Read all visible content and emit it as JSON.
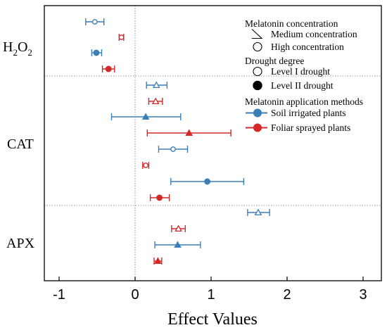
{
  "colors": {
    "blue": "#3a7fb8",
    "red": "#d62828",
    "axis": "#000000",
    "ref": "#777777"
  },
  "chart_data": {
    "type": "forest",
    "title": "",
    "xlabel": "Effect Values",
    "ylabel": "",
    "xlim": [
      -1.2,
      3.2
    ],
    "xticks": [
      -1,
      0,
      1,
      2,
      3
    ],
    "xtick_labels": [
      "-1",
      "0",
      "1",
      "2",
      "3"
    ],
    "reference_line_x": 0,
    "grid": false,
    "legend_position": "top-right",
    "groups": [
      {
        "label": "H2O2",
        "label_base": "H",
        "label_sub1": "2",
        "label_mid": "O",
        "label_sub2": "2"
      },
      {
        "label": "CAT"
      },
      {
        "label": "APX"
      }
    ],
    "points": [
      {
        "group": "H2O2",
        "method": "Soil irrigated plants",
        "concentration": "High concentration",
        "drought": "Level I drought",
        "mean": -0.53,
        "ci_low": -0.65,
        "ci_high": -0.41
      },
      {
        "group": "H2O2",
        "method": "Foliar sprayed plants",
        "concentration": "High concentration",
        "drought": "Level I drought",
        "mean": -0.18,
        "ci_low": -0.21,
        "ci_high": -0.15
      },
      {
        "group": "H2O2",
        "method": "Soil irrigated plants",
        "concentration": "High concentration",
        "drought": "Level II drought",
        "mean": -0.51,
        "ci_low": -0.57,
        "ci_high": -0.44
      },
      {
        "group": "H2O2",
        "method": "Foliar sprayed plants",
        "concentration": "High concentration",
        "drought": "Level II drought",
        "mean": -0.35,
        "ci_low": -0.43,
        "ci_high": -0.27
      },
      {
        "group": "CAT",
        "method": "Soil irrigated plants",
        "concentration": "Medium concentration",
        "drought": "Level I drought",
        "mean": 0.28,
        "ci_low": 0.15,
        "ci_high": 0.42
      },
      {
        "group": "CAT",
        "method": "Foliar sprayed plants",
        "concentration": "Medium concentration",
        "drought": "Level I drought",
        "mean": 0.27,
        "ci_low": 0.18,
        "ci_high": 0.36
      },
      {
        "group": "CAT",
        "method": "Soil irrigated plants",
        "concentration": "Medium concentration",
        "drought": "Level II drought",
        "mean": 0.14,
        "ci_low": -0.31,
        "ci_high": 0.6
      },
      {
        "group": "CAT",
        "method": "Foliar sprayed plants",
        "concentration": "Medium concentration",
        "drought": "Level II drought",
        "mean": 0.71,
        "ci_low": 0.16,
        "ci_high": 1.26
      },
      {
        "group": "CAT",
        "method": "Soil irrigated plants",
        "concentration": "High concentration",
        "drought": "Level I drought",
        "mean": 0.5,
        "ci_low": 0.31,
        "ci_high": 0.69
      },
      {
        "group": "CAT",
        "method": "Foliar sprayed plants",
        "concentration": "High concentration",
        "drought": "Level I drought",
        "mean": 0.14,
        "ci_low": 0.1,
        "ci_high": 0.18
      },
      {
        "group": "CAT",
        "method": "Soil irrigated plants",
        "concentration": "High concentration",
        "drought": "Level II drought",
        "mean": 0.95,
        "ci_low": 0.47,
        "ci_high": 1.43
      },
      {
        "group": "CAT",
        "method": "Foliar sprayed plants",
        "concentration": "High concentration",
        "drought": "Level II drought",
        "mean": 0.32,
        "ci_low": 0.2,
        "ci_high": 0.45
      },
      {
        "group": "APX",
        "method": "Soil irrigated plants",
        "concentration": "Medium concentration",
        "drought": "Level I drought",
        "mean": 1.62,
        "ci_low": 1.48,
        "ci_high": 1.77
      },
      {
        "group": "APX",
        "method": "Foliar sprayed plants",
        "concentration": "Medium concentration",
        "drought": "Level I drought",
        "mean": 0.57,
        "ci_low": 0.48,
        "ci_high": 0.66
      },
      {
        "group": "APX",
        "method": "Soil irrigated plants",
        "concentration": "Medium concentration",
        "drought": "Level II drought",
        "mean": 0.56,
        "ci_low": 0.26,
        "ci_high": 0.86
      },
      {
        "group": "APX",
        "method": "Foliar sprayed plants",
        "concentration": "Medium concentration",
        "drought": "Level II drought",
        "mean": 0.3,
        "ci_low": 0.25,
        "ci_high": 0.35
      }
    ],
    "legend": {
      "sections": [
        {
          "title": "Melatonin concentration",
          "entries": [
            {
              "label": "Medium concentration",
              "symbol": "triangle-open"
            },
            {
              "label": "High concentration",
              "symbol": "circle-open"
            }
          ]
        },
        {
          "title": "Drought degree",
          "entries": [
            {
              "label": "Level I drought",
              "symbol": "circle-open"
            },
            {
              "label": "Level II drought",
              "symbol": "circle-filled"
            }
          ]
        },
        {
          "title": "Melatonin application methods",
          "entries": [
            {
              "label": "Soil irrigated plants",
              "symbol": "line-dot",
              "color": "#3a7fb8"
            },
            {
              "label": "Foliar sprayed plants",
              "symbol": "line-dot",
              "color": "#d62828"
            }
          ]
        }
      ]
    }
  }
}
